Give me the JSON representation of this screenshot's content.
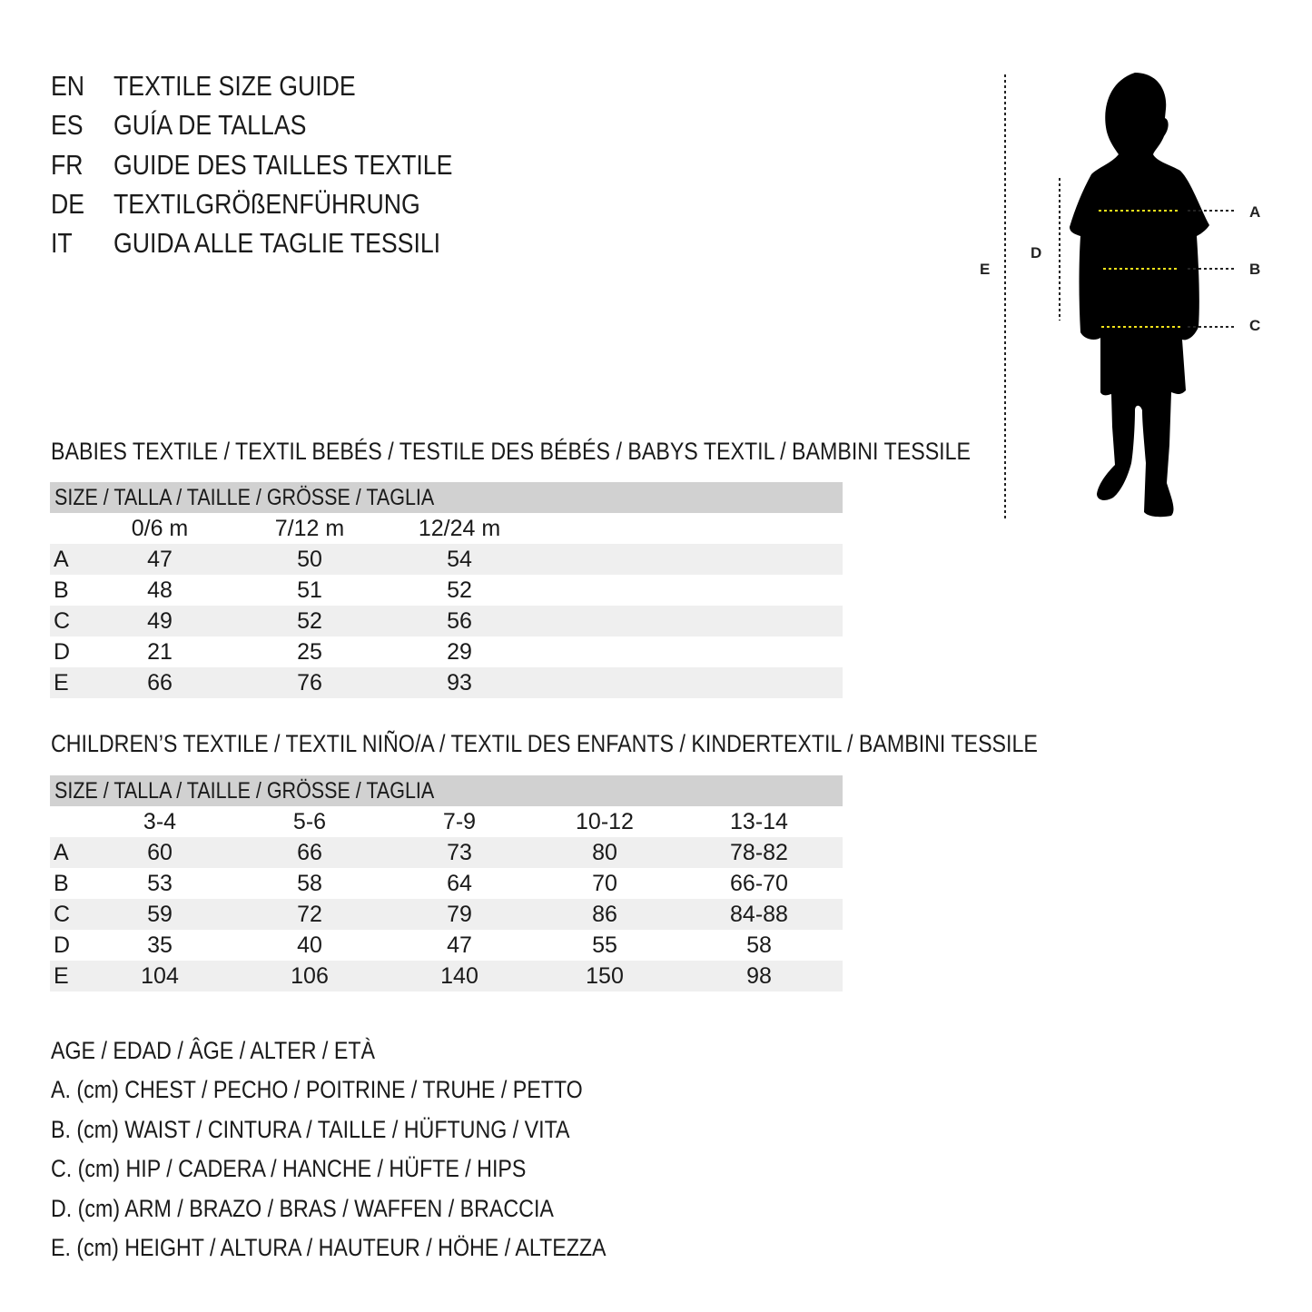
{
  "header": {
    "languages": [
      {
        "code": "EN",
        "title": "TEXTILE SIZE GUIDE"
      },
      {
        "code": "ES",
        "title": "GUÍA DE TALLAS"
      },
      {
        "code": "FR",
        "title": "GUIDE DES TAILLES TEXTILE"
      },
      {
        "code": "DE",
        "title": "TEXTILGRÖßENFÜHRUNG"
      },
      {
        "code": "IT",
        "title": "GUIDA ALLE TAGLIE TESSILI"
      }
    ]
  },
  "figure": {
    "labels": {
      "a": "A",
      "b": "B",
      "c": "C",
      "d": "D",
      "e": "E"
    },
    "measure_line_color": "#f2e21a"
  },
  "babies": {
    "title": "BABIES TEXTILE / TEXTIL BEBÉS / TESTILE DES BÉBÉS / BABYS TEXTIL / BAMBINI TESSILE",
    "size_header": "SIZE / TALLA / TAILLE / GRÖSSE / TAGLIA",
    "columns": [
      "0/6 m",
      "7/12 m",
      "12/24 m"
    ],
    "rows": [
      {
        "label": "A",
        "values": [
          "47",
          "50",
          "54"
        ]
      },
      {
        "label": "B",
        "values": [
          "48",
          "51",
          "52"
        ]
      },
      {
        "label": "C",
        "values": [
          "49",
          "52",
          "56"
        ]
      },
      {
        "label": "D",
        "values": [
          "21",
          "25",
          "29"
        ]
      },
      {
        "label": "E",
        "values": [
          "66",
          "76",
          "93"
        ]
      }
    ]
  },
  "children": {
    "title": "CHILDREN’S TEXTILE / TEXTIL NIÑO/A / TEXTIL DES ENFANTS / KINDERTEXTIL / BAMBINI TESSILE",
    "size_header": "SIZE / TALLA / TAILLE / GRÖSSE / TAGLIA",
    "columns": [
      "3-4",
      "5-6",
      "7-9",
      "10-12",
      "13-14"
    ],
    "rows": [
      {
        "label": "A",
        "values": [
          "60",
          "66",
          "73",
          "80",
          "78-82"
        ]
      },
      {
        "label": "B",
        "values": [
          "53",
          "58",
          "64",
          "70",
          "66-70"
        ]
      },
      {
        "label": "C",
        "values": [
          "59",
          "72",
          "79",
          "86",
          "84-88"
        ]
      },
      {
        "label": "D",
        "values": [
          "35",
          "40",
          "47",
          "55",
          "58"
        ]
      },
      {
        "label": "E",
        "values": [
          "104",
          "106",
          "140",
          "150",
          "98"
        ]
      }
    ]
  },
  "legend": [
    "AGE / EDAD / ÂGE / ALTER / ETÀ",
    "A. (cm) CHEST / PECHO / POITRINE / TRUHE / PETTO",
    "B. (cm) WAIST / CINTURA / TAILLE / HÜFTUNG / VITA",
    "C. (cm) HIP / CADERA / HANCHE / HÜFTE / HIPS",
    "D. (cm) ARM / BRAZO / BRAS / WAFFEN / BRACCIA",
    "E. (cm) HEIGHT / ALTURA / HAUTEUR / HÖHE / ALTEZZA"
  ]
}
